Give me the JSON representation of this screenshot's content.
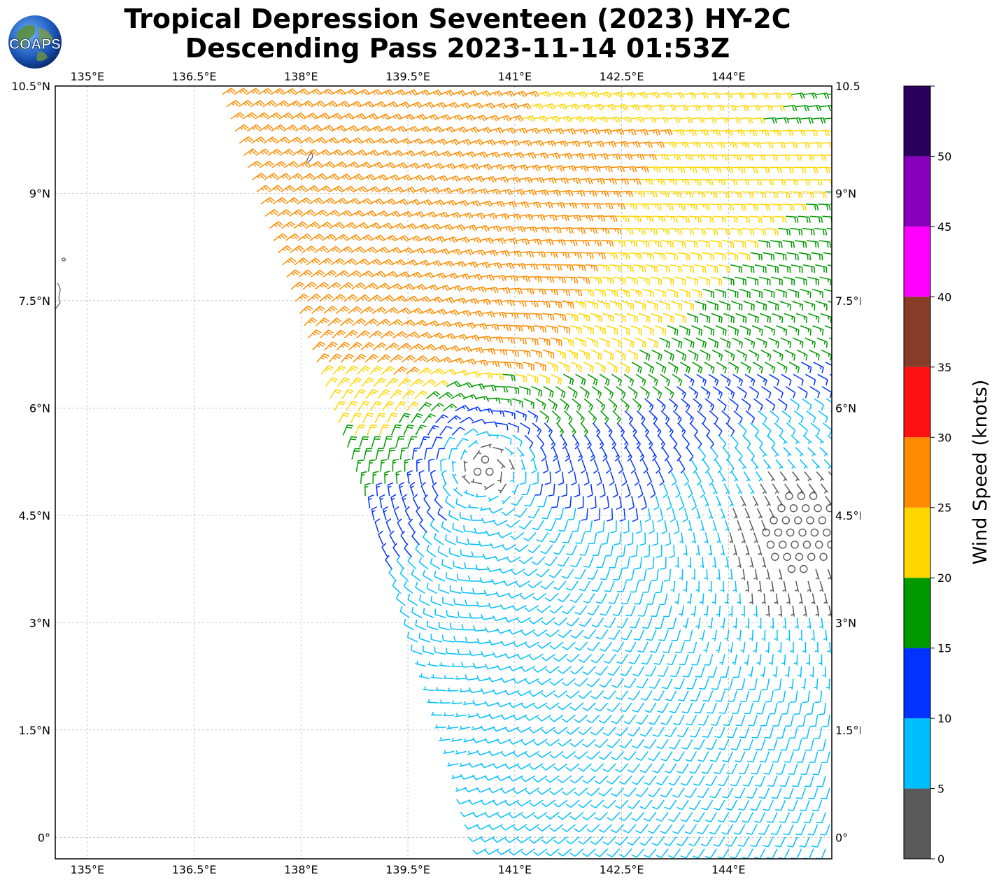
{
  "title": {
    "line1": "Tropical Depression Seventeen (2023) HY-2C",
    "line2": "Descending Pass 2023-11-14 01:53Z"
  },
  "logo": {
    "text": "COAPS",
    "icon": "globe-icon"
  },
  "chart_data": {
    "type": "map-wind-barbs",
    "projection": "plate-carree",
    "lon_range": [
      134.55,
      145.45
    ],
    "lat_range": [
      -0.3,
      10.5
    ],
    "lon_ticks": [
      135,
      136.5,
      138,
      139.5,
      141,
      142.5,
      144
    ],
    "lon_tick_labels": [
      "135°E",
      "136.5°E",
      "138°E",
      "139.5°E",
      "141°E",
      "142.5°E",
      "144°E"
    ],
    "lat_ticks": [
      0,
      1.5,
      3,
      4.5,
      6,
      7.5,
      9,
      10.5
    ],
    "lat_tick_labels": [
      "0°",
      "1.5°N",
      "3°N",
      "4.5°N",
      "6°N",
      "7.5°N",
      "9°N",
      "10.5°N"
    ],
    "grid": true,
    "swath": {
      "description": "HY-2C scatterometer swath",
      "west_edge": [
        [
          136.8,
          10.5
        ],
        [
          138.4,
          6.0
        ],
        [
          139.5,
          3.0
        ],
        [
          140.6,
          -0.3
        ]
      ],
      "east_edge": [
        [
          145.45,
          10.5
        ],
        [
          145.45,
          -0.3
        ]
      ]
    },
    "circulation_center": {
      "lon": 140.4,
      "lat": 5.7
    },
    "calm_region_center": {
      "lon": 145.0,
      "lat": 4.3
    },
    "colorbar": {
      "label": "Wind Speed (knots)",
      "ticks": [
        0,
        5,
        10,
        15,
        20,
        25,
        30,
        35,
        40,
        45,
        50
      ],
      "bins": [
        {
          "min": 0,
          "max": 5,
          "color": "#595959"
        },
        {
          "min": 5,
          "max": 10,
          "color": "#00bfff"
        },
        {
          "min": 10,
          "max": 15,
          "color": "#0033ff"
        },
        {
          "min": 15,
          "max": 20,
          "color": "#009900"
        },
        {
          "min": 20,
          "max": 25,
          "color": "#ffd700"
        },
        {
          "min": 25,
          "max": 30,
          "color": "#ff8c00"
        },
        {
          "min": 30,
          "max": 35,
          "color": "#ff1111"
        },
        {
          "min": 35,
          "max": 40,
          "color": "#873d28"
        },
        {
          "min": 40,
          "max": 45,
          "color": "#ff00ff"
        },
        {
          "min": 45,
          "max": 50,
          "color": "#8800bb"
        },
        {
          "min": 50,
          "max": 55,
          "color": "#2a005c"
        }
      ]
    }
  }
}
